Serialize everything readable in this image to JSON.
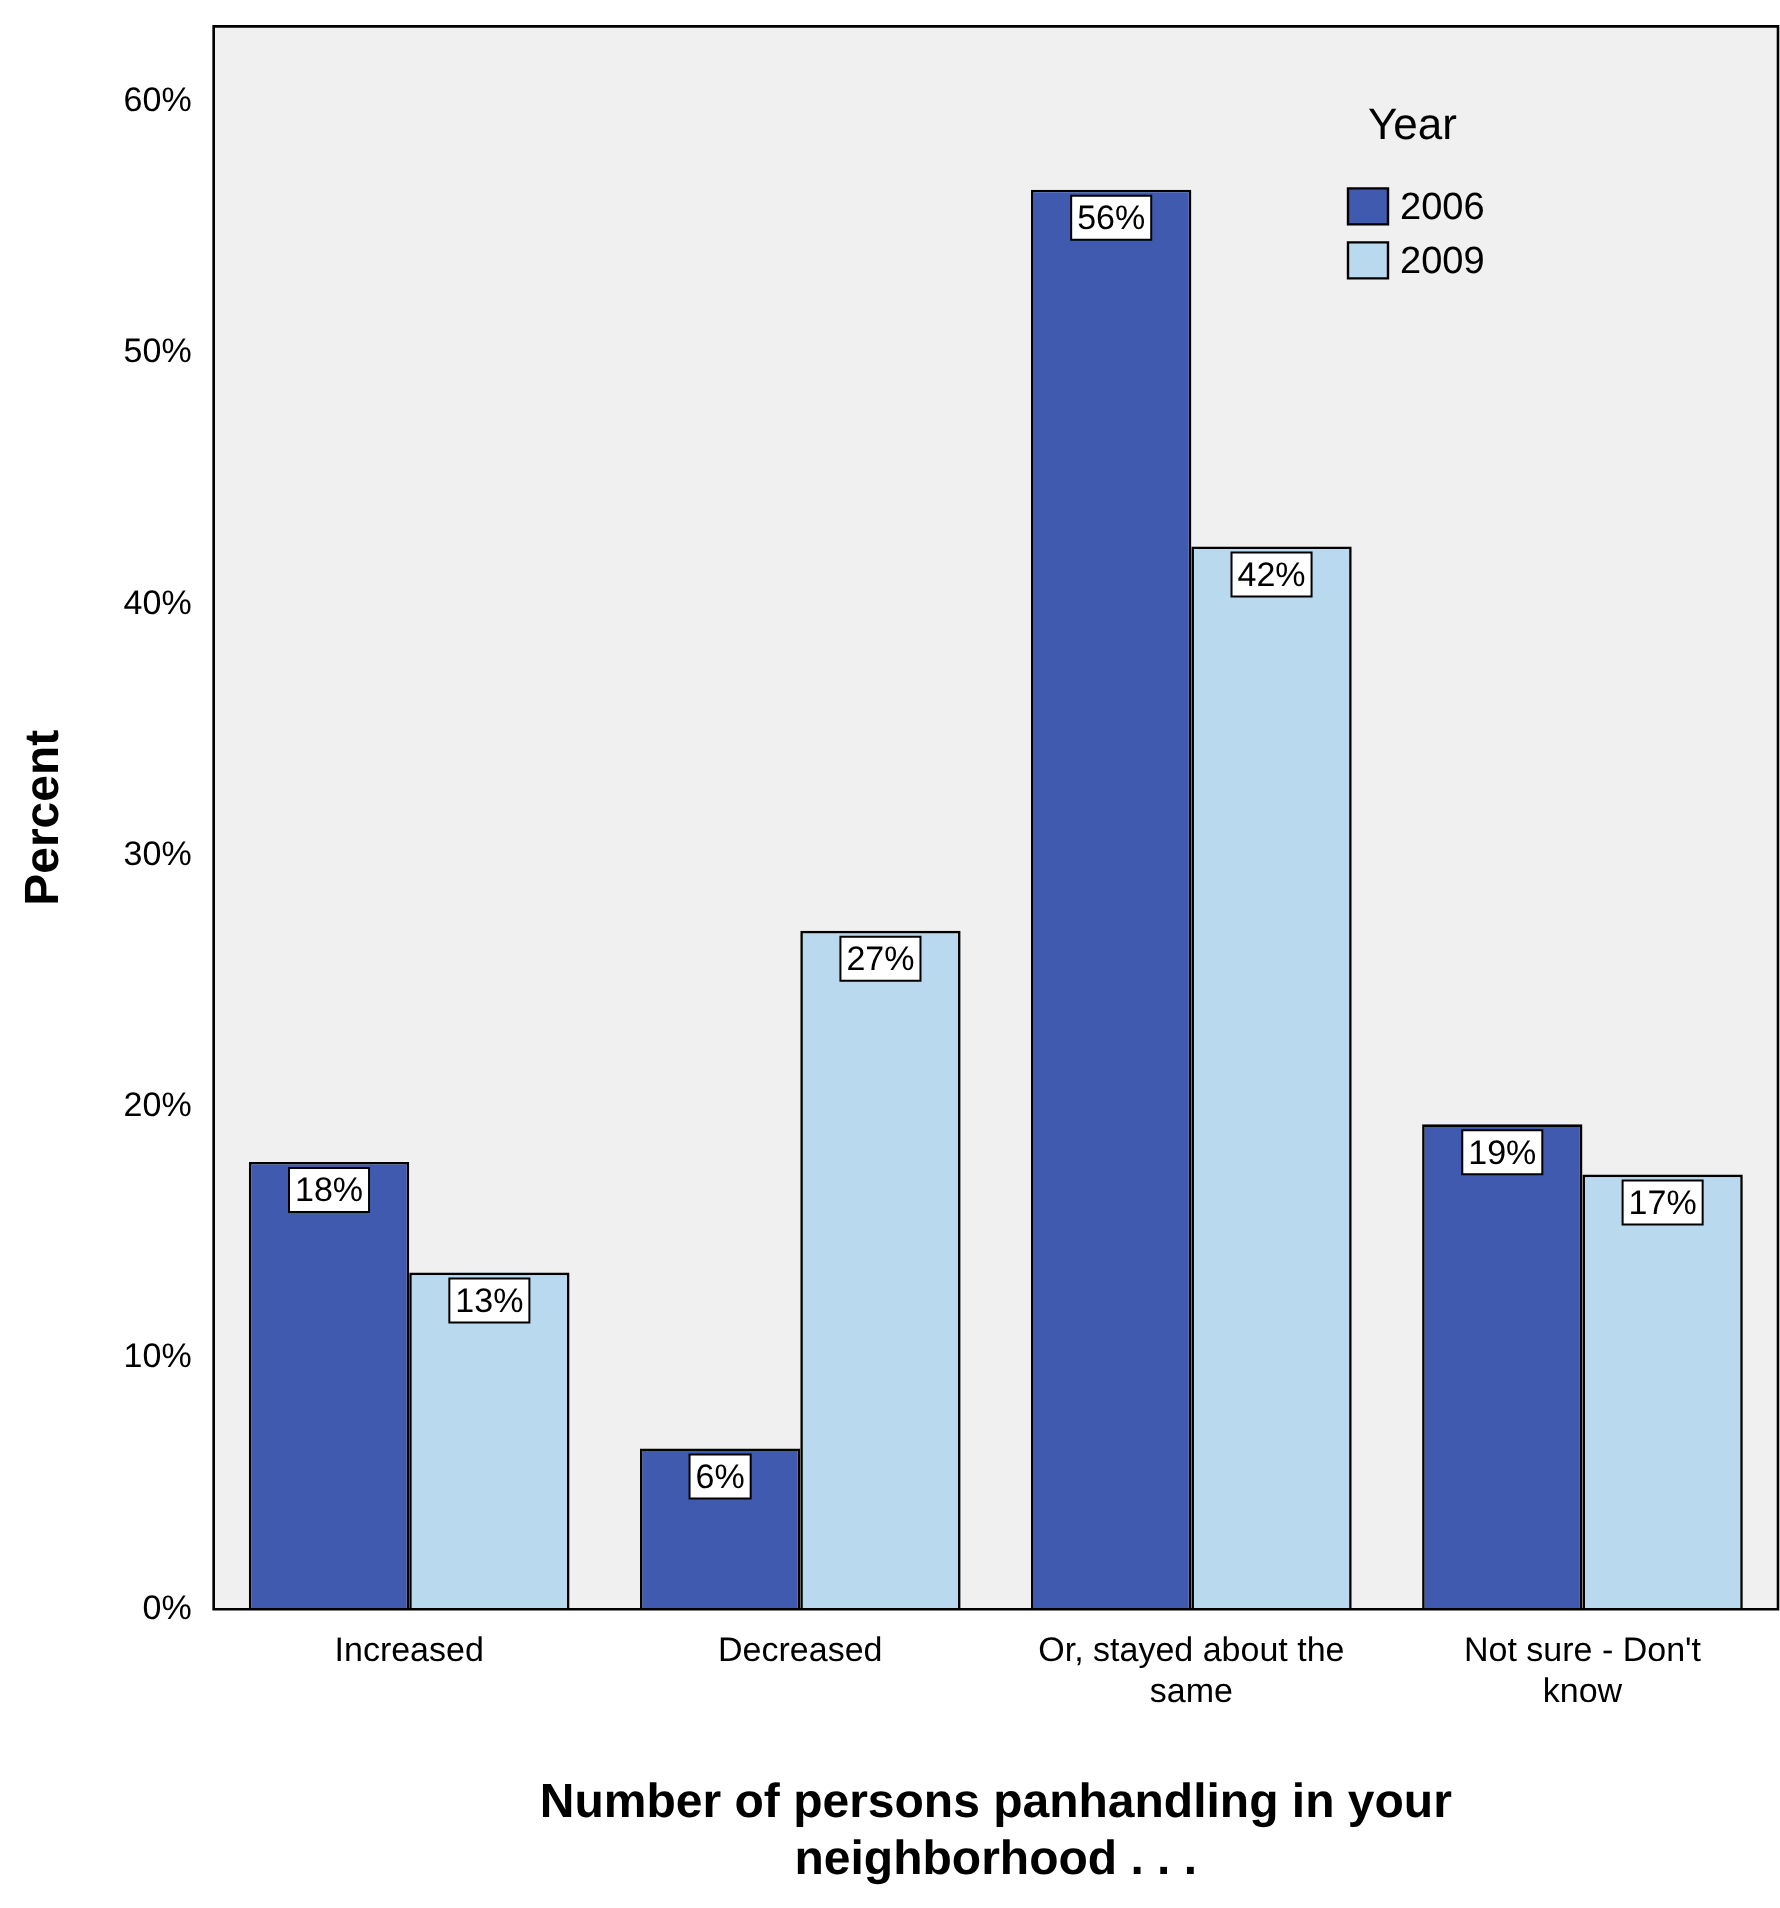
{
  "chart_data": {
    "type": "bar",
    "xlabel": "Number of persons panhandling in your neighborhood . . .",
    "ylabel": "Percent",
    "legend_title": "Year",
    "categories": [
      "Increased",
      "Decreased",
      "Or, stayed about the same",
      "Not sure - Don't know"
    ],
    "series": [
      {
        "name": "2006",
        "color": "#3f5aaf",
        "values": [
          17.8,
          6.4,
          56.5,
          19.3
        ],
        "value_labels": [
          "18%",
          "6%",
          "56%",
          "19%"
        ]
      },
      {
        "name": "2009",
        "color": "#b9d9ef",
        "values": [
          13.4,
          27.0,
          42.3,
          17.3
        ],
        "value_labels": [
          "13%",
          "27%",
          "42%",
          "17%"
        ]
      }
    ],
    "ylim": [
      0,
      63
    ],
    "yticks": [
      {
        "value": 0,
        "label": "0%"
      },
      {
        "value": 10,
        "label": "10%"
      },
      {
        "value": 20,
        "label": "20%"
      },
      {
        "value": 30,
        "label": "30%"
      },
      {
        "value": 40,
        "label": "40%"
      },
      {
        "value": 50,
        "label": "50%"
      },
      {
        "value": 60,
        "label": "60%"
      }
    ],
    "grid": false,
    "legend": "top right"
  }
}
